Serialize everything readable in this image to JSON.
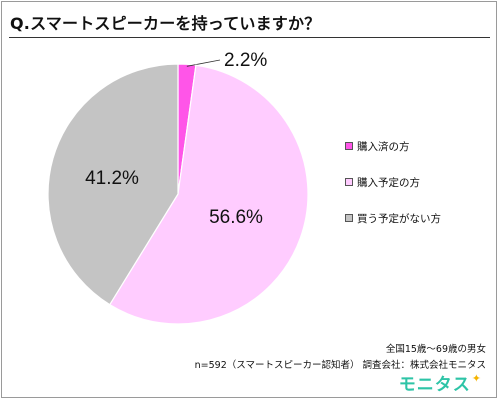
{
  "title": "Q.スマートスピーカーを持っていますか？",
  "chart_data": {
    "type": "pie",
    "title": "Q.スマートスピーカーを持っていますか？",
    "slices": [
      {
        "label": "購入済の方",
        "value": 2.2,
        "display": "2.2%",
        "color": "#ff55e8"
      },
      {
        "label": "購入予定の方",
        "value": 56.6,
        "display": "56.6%",
        "color": "#ffccff"
      },
      {
        "label": "買う予定がない方",
        "value": 41.2,
        "display": "41.2%",
        "color": "#c4c4c4"
      }
    ],
    "start": "12 o'clock",
    "direction": "clockwise",
    "legend_position": "right"
  },
  "footnotes": {
    "line1": "全国15歳～69歳の男女",
    "line2": "n=592（スマートスピーカー認知者） 調査会社：株式会社モニタス"
  },
  "brand": {
    "text": "モニタス",
    "color": "#2ec4a7",
    "spark_color": "#f5b400"
  }
}
